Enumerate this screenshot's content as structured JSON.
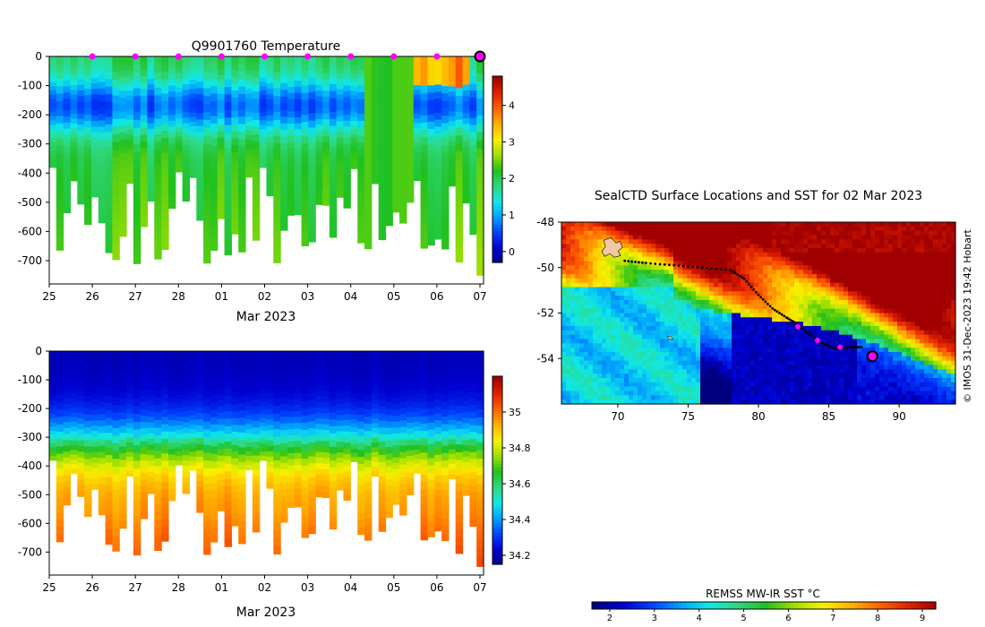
{
  "colors": {
    "jet": [
      "#00007f",
      "#0000d0",
      "#0040ff",
      "#00a0ff",
      "#10e8e6",
      "#30d880",
      "#20c020",
      "#a0e000",
      "#f8f000",
      "#ffb000",
      "#ff6000",
      "#e02000",
      "#a00000"
    ],
    "profile_marker": "#ff00ff"
  },
  "chart_data": [
    {
      "type": "heatmap",
      "title": "Q9901760  Temperature",
      "x_ticks": [
        "25",
        "26",
        "27",
        "28",
        "01",
        "02",
        "03",
        "04",
        "05",
        "06",
        "07"
      ],
      "xlabel": "Mar 2023",
      "y_ticks": [
        "0",
        "-100",
        "-200",
        "-300",
        "-400",
        "-500",
        "-600",
        "-700"
      ],
      "ylim": [
        -780,
        0
      ],
      "colorbar_ticks": [
        "0",
        "1",
        "2",
        "3",
        "4"
      ],
      "colorbar_range": [
        -0.3,
        4.8
      ],
      "profile_days": [
        1,
        2,
        3,
        4,
        5,
        6,
        7,
        8,
        9
      ],
      "last_profile_day": 10,
      "columns_seed": 11
    },
    {
      "type": "heatmap",
      "title": "",
      "x_ticks": [
        "25",
        "26",
        "27",
        "28",
        "01",
        "02",
        "03",
        "04",
        "05",
        "06",
        "07"
      ],
      "xlabel": "Mar 2023",
      "y_ticks": [
        "0",
        "-100",
        "-200",
        "-300",
        "-400",
        "-500",
        "-600",
        "-700"
      ],
      "ylim": [
        -780,
        0
      ],
      "colorbar_ticks": [
        "34.2",
        "34.4",
        "34.6",
        "34.8",
        "35"
      ],
      "colorbar_range": [
        34.15,
        35.2
      ],
      "columns_seed": 11
    },
    {
      "type": "heatmap",
      "title": "SealCTD Surface Locations and SST for 02 Mar 2023",
      "x_ticks": [
        "70",
        "75",
        "80",
        "85",
        "90"
      ],
      "y_ticks": [
        "-48",
        "-50",
        "-52",
        "-54"
      ],
      "xlim": [
        66,
        94
      ],
      "ylim": [
        -56,
        -48
      ],
      "track": [
        [
          70.5,
          -49.7
        ],
        [
          72,
          -49.8
        ],
        [
          74,
          -49.9
        ],
        [
          76,
          -50.0
        ],
        [
          78,
          -50.1
        ],
        [
          79,
          -50.5
        ],
        [
          80,
          -51.2
        ],
        [
          81,
          -51.8
        ],
        [
          82,
          -52.2
        ],
        [
          82.8,
          -52.5
        ],
        [
          83.5,
          -52.9
        ],
        [
          84.5,
          -53.3
        ],
        [
          85.5,
          -53.6
        ],
        [
          86.5,
          -53.5
        ],
        [
          87.5,
          -53.5
        ]
      ],
      "track_profiles": [
        [
          82.8,
          -52.6
        ],
        [
          84.2,
          -53.2
        ],
        [
          85.8,
          -53.5
        ]
      ],
      "last_position": [
        88.1,
        -53.9
      ],
      "colorbar_label": "REMSS MW-IR SST °C",
      "colorbar_ticks": [
        "2",
        "3",
        "4",
        "5",
        "6",
        "7",
        "8",
        "9"
      ],
      "colorbar_range": [
        1.6,
        9.3
      ],
      "credit": "© IMOS 31-Dec-2023 19:42 Hobart"
    }
  ]
}
